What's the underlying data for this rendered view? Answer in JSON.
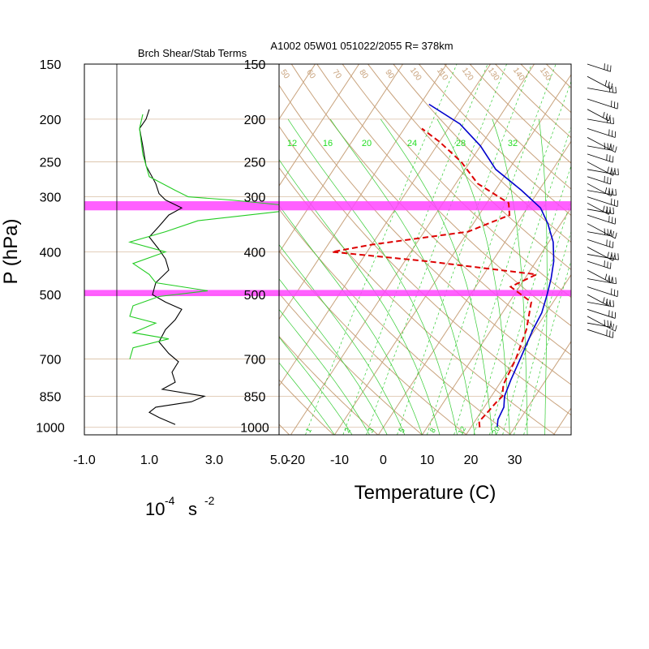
{
  "header": {
    "left_title": "Brch Shear/Stab Terms",
    "right_title": "A1002 05W01 051022/2055 R= 378km"
  },
  "y_axis": {
    "label": "P (hPa)",
    "levels": [
      150,
      200,
      250,
      300,
      400,
      500,
      700,
      850,
      1000
    ],
    "range": [
      150,
      1040
    ]
  },
  "left_panel": {
    "x_ticks": [
      "-1.0",
      "1.0",
      "3.0",
      "5.0"
    ],
    "x_range": [
      -1.0,
      5.0
    ],
    "x_label_base": "10",
    "x_label_exp": "-4",
    "x_label_unit": "s",
    "x_label_exp2": "-2"
  },
  "right_panel": {
    "x_ticks": [
      "-20",
      "-10",
      "0",
      "10",
      "20",
      "30"
    ],
    "x_label": "Temperature (C)"
  },
  "mixing_ratio_labels": [
    "12",
    "16",
    "20",
    "24",
    "28",
    "32"
  ],
  "mixing_ratio_bottom_labels": [
    "1",
    "2",
    "3",
    "5",
    "8",
    "12",
    "20"
  ],
  "dry_adiabat_labels": [
    "50",
    "60",
    "70",
    "80",
    "90",
    "100",
    "110",
    "120",
    "130",
    "140",
    "150"
  ],
  "colors": {
    "temperature": "#0000cc",
    "dewpoint": "#dd0000",
    "shear_stab_green": "#22cc22",
    "shear_stab_black": "#000000",
    "highlight_band": "#ff44ff",
    "background_lines": "#c8a27c",
    "moist_lines": "#33cc33"
  },
  "highlight_bands_hPa": [
    [
      307,
      322
    ],
    [
      488,
      504
    ]
  ],
  "chart_data": [
    {
      "type": "line",
      "title": "Brch Shear/Stab Terms",
      "xlabel": "10-4 s-2",
      "ylabel": "P (hPa)",
      "xlim": [
        -1.0,
        5.0
      ],
      "ylim": [
        1040,
        150
      ],
      "y_scale": "log",
      "series": [
        {
          "color": "#000000",
          "points": [
            [
              1.0,
              190
            ],
            [
              0.9,
              200
            ],
            [
              0.7,
              210
            ],
            [
              0.8,
              230
            ],
            [
              0.9,
              255
            ],
            [
              1.2,
              280
            ],
            [
              1.3,
              295
            ],
            [
              1.5,
              305
            ],
            [
              2.0,
              318
            ],
            [
              1.6,
              330
            ],
            [
              1.3,
              350
            ],
            [
              1.0,
              370
            ],
            [
              1.3,
              395
            ],
            [
              1.5,
              415
            ],
            [
              1.6,
              440
            ],
            [
              1.2,
              470
            ],
            [
              1.1,
              500
            ],
            [
              1.5,
              520
            ],
            [
              2.0,
              540
            ],
            [
              1.8,
              570
            ],
            [
              1.5,
              600
            ],
            [
              1.3,
              640
            ],
            [
              1.6,
              680
            ],
            [
              1.9,
              710
            ],
            [
              1.7,
              750
            ],
            [
              1.8,
              790
            ],
            [
              1.4,
              820
            ],
            [
              2.7,
              850
            ],
            [
              2.3,
              875
            ],
            [
              1.2,
              900
            ],
            [
              1.0,
              925
            ],
            [
              1.3,
              950
            ],
            [
              1.8,
              985
            ]
          ]
        },
        {
          "color": "#22cc22",
          "points": [
            [
              0.8,
              195
            ],
            [
              0.7,
              210
            ],
            [
              0.8,
              240
            ],
            [
              1.0,
              270
            ],
            [
              1.8,
              290
            ],
            [
              2.2,
              300
            ],
            [
              3.5,
              305
            ],
            [
              6.0,
              318
            ],
            [
              2.5,
              340
            ],
            [
              1.5,
              360
            ],
            [
              0.4,
              380
            ],
            [
              1.5,
              400
            ],
            [
              0.5,
              425
            ],
            [
              1.0,
              450
            ],
            [
              1.2,
              470
            ],
            [
              2.8,
              490
            ],
            [
              1.3,
              505
            ],
            [
              0.5,
              530
            ],
            [
              0.4,
              560
            ],
            [
              1.2,
              580
            ],
            [
              0.5,
              610
            ],
            [
              1.6,
              630
            ],
            [
              0.5,
              660
            ],
            [
              0.4,
              700
            ]
          ]
        }
      ]
    },
    {
      "type": "line",
      "title": "A1002 05W01 051022/2055 R= 378km",
      "xlabel": "Temperature (C)",
      "ylabel": "P (hPa)",
      "ylim": [
        1040,
        150
      ],
      "y_scale": "log",
      "skew": "skew-T log-p diagram",
      "series": [
        {
          "name": "Temperature",
          "color": "#0000cc",
          "line_style": "solid",
          "points": [
            [
              26,
              1000
            ],
            [
              25,
              960
            ],
            [
              24.5,
              900
            ],
            [
              23,
              850
            ],
            [
              22,
              780
            ],
            [
              21,
              700
            ],
            [
              19.5,
              600
            ],
            [
              19,
              550
            ],
            [
              17.5,
              500
            ],
            [
              16,
              460
            ],
            [
              14,
              420
            ],
            [
              11,
              380
            ],
            [
              7,
              345
            ],
            [
              3,
              318
            ],
            [
              -4,
              290
            ],
            [
              -13,
              260
            ],
            [
              -20,
              230
            ],
            [
              -28,
              205
            ],
            [
              -38,
              185
            ]
          ]
        },
        {
          "name": "Dewpoint",
          "color": "#dd0000",
          "line_style": "dashed",
          "points": [
            [
              22,
              1000
            ],
            [
              21,
              970
            ],
            [
              21.5,
              930
            ],
            [
              22,
              880
            ],
            [
              22.5,
              850
            ],
            [
              21,
              800
            ],
            [
              20,
              700
            ],
            [
              18,
              600
            ],
            [
              15,
              520
            ],
            [
              8,
              480
            ],
            [
              12,
              450
            ],
            [
              -15,
              420
            ],
            [
              -38,
              400
            ],
            [
              -30,
              385
            ],
            [
              -10,
              360
            ],
            [
              -3,
              330
            ],
            [
              -5,
              310
            ],
            [
              -15,
              280
            ],
            [
              -22,
              250
            ],
            [
              -30,
              225
            ],
            [
              -36,
              210
            ]
          ]
        }
      ]
    }
  ]
}
